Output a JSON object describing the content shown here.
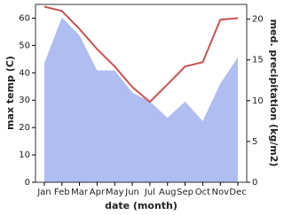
{
  "chart_data": {
    "type": "line",
    "categories": [
      "Jan",
      "Feb",
      "Mar",
      "Apr",
      "May",
      "Jun",
      "Jul",
      "Aug",
      "Sep",
      "Oct",
      "Nov",
      "Dec"
    ],
    "x_label": "date (month)",
    "y_label": "max temp (C)",
    "y2_label": "med. precipitation (kg/m2)",
    "ylim": [
      0,
      65
    ],
    "yticks": [
      0,
      10,
      20,
      30,
      40,
      50,
      60
    ],
    "y2lim": [
      0,
      21.8
    ],
    "y2ticks": [
      0,
      5,
      10,
      15,
      20
    ],
    "series": [
      {
        "name": "med. precipitation",
        "type": "area",
        "axis": "y2",
        "color": "#b0bdf1",
        "values": [
          14.6,
          20.2,
          18,
          13.7,
          13.7,
          11,
          9.9,
          7.9,
          9.9,
          7.5,
          12.1,
          15.3
        ]
      },
      {
        "name": "max temp",
        "type": "line",
        "axis": "y",
        "color": "#c85252",
        "values": [
          64.2,
          62.6,
          56,
          48.7,
          42.3,
          34.8,
          29.4,
          35.8,
          42.3,
          43.9,
          59.4,
          60
        ]
      }
    ]
  }
}
